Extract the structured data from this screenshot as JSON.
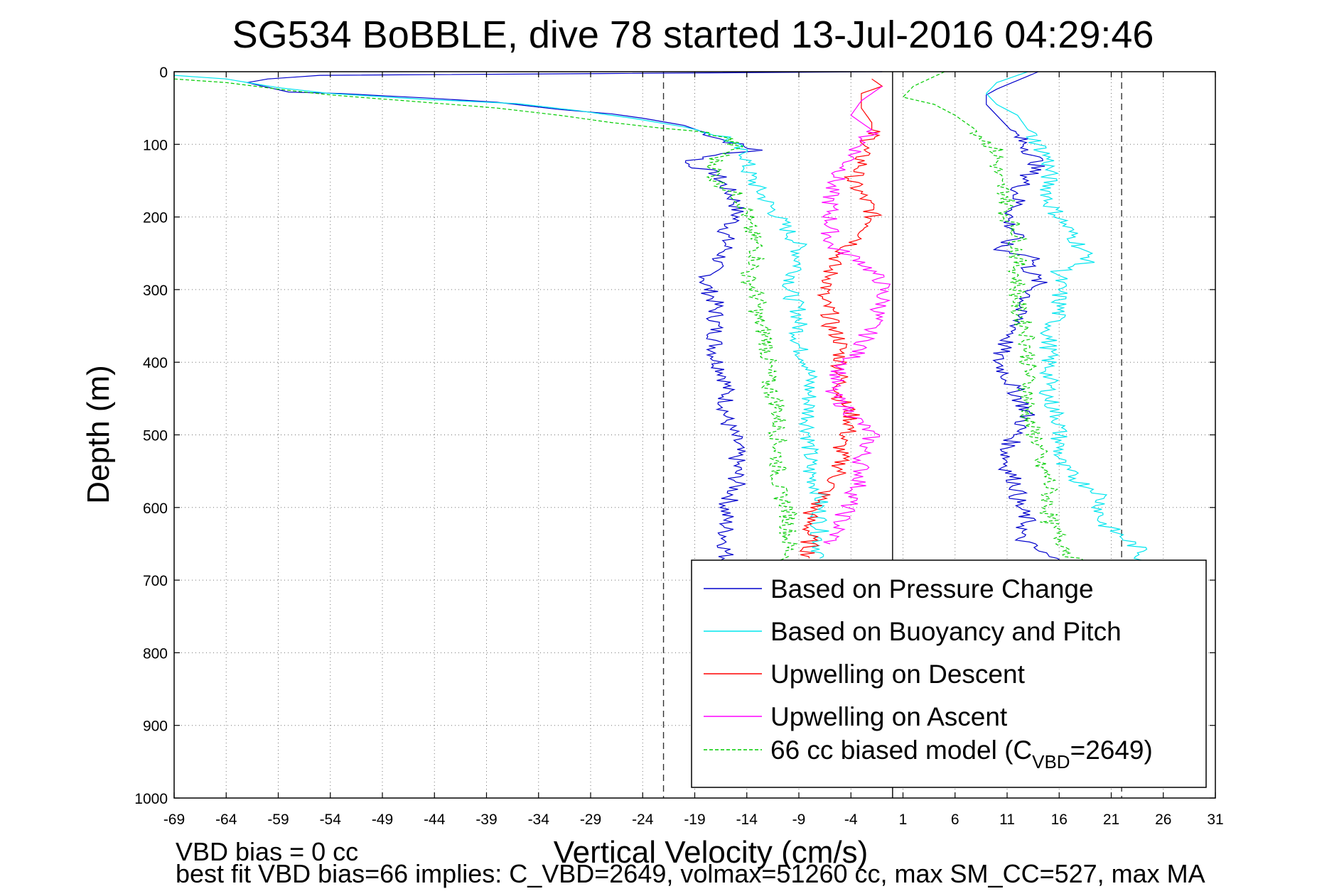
{
  "chart_data": {
    "type": "line",
    "title": "SG534 BoBBLE, dive 78 started 13-Jul-2016 04:29:46",
    "xlabel": "Vertical Velocity (cm/s)",
    "ylabel": "Depth (m)",
    "xlim": [
      -69,
      31
    ],
    "ylim": [
      0,
      1000
    ],
    "y_reversed": true,
    "grid": true,
    "x_ticks": [
      -69,
      -64,
      -59,
      -54,
      -49,
      -44,
      -39,
      -34,
      -29,
      -24,
      -19,
      -14,
      -9,
      -4,
      1,
      6,
      11,
      16,
      21,
      26,
      31
    ],
    "y_ticks": [
      0,
      100,
      200,
      300,
      400,
      500,
      600,
      700,
      800,
      900,
      1000
    ],
    "reference_lines": {
      "zero": 0,
      "dashed": [
        -22,
        22
      ]
    },
    "legend_placement": "bottom-right",
    "footer": {
      "line1": "VBD bias = 0 cc",
      "line2": "best fit VBD bias=66 implies: C_VBD=2649, volmax=51260 cc, max SM_CC=527, max MA"
    },
    "series": [
      {
        "name": "Based on Pressure Change",
        "color": "#0000cc",
        "style": "solid",
        "points": [
          [
            -1,
            0
          ],
          [
            -55,
            5
          ],
          [
            -60,
            10
          ],
          [
            -62,
            15
          ],
          [
            -58,
            28
          ],
          [
            -53,
            30
          ],
          [
            -45,
            36
          ],
          [
            -38,
            42
          ],
          [
            -32,
            52
          ],
          [
            -27,
            58
          ],
          [
            -24,
            64
          ],
          [
            -20,
            74
          ],
          [
            -18,
            84
          ],
          [
            -16,
            95
          ],
          [
            -14,
            104
          ],
          [
            -13,
            108
          ],
          [
            -17,
            115
          ],
          [
            -20,
            125
          ],
          [
            -17,
            140
          ],
          [
            -16,
            160
          ],
          [
            -15,
            180
          ],
          [
            -15,
            200
          ],
          [
            -16,
            220
          ],
          [
            -16,
            245
          ],
          [
            -17,
            265
          ],
          [
            -18,
            290
          ],
          [
            -17,
            320
          ],
          [
            -17,
            345
          ],
          [
            -17,
            370
          ],
          [
            -17,
            395
          ],
          [
            -16,
            420
          ],
          [
            -16,
            450
          ],
          [
            -16,
            480
          ],
          [
            -15,
            510
          ],
          [
            -15,
            540
          ],
          [
            -15,
            570
          ],
          [
            -16,
            600
          ],
          [
            -16,
            630
          ],
          [
            -16,
            660
          ],
          [
            -16,
            690
          ]
        ]
      },
      {
        "name": "Based on Buoyancy and Pitch",
        "color": "#00e5ee",
        "style": "solid",
        "points": [
          [
            -69,
            5
          ],
          [
            -64,
            10
          ],
          [
            -59,
            22
          ],
          [
            -54,
            30
          ],
          [
            -45,
            38
          ],
          [
            -36,
            44
          ],
          [
            -30,
            54
          ],
          [
            -25,
            64
          ],
          [
            -20,
            76
          ],
          [
            -16,
            90
          ],
          [
            -15,
            105
          ],
          [
            -14,
            115
          ],
          [
            -14,
            135
          ],
          [
            -13,
            160
          ],
          [
            -12,
            180
          ],
          [
            -11,
            200
          ],
          [
            -10,
            220
          ],
          [
            -9,
            240
          ],
          [
            -9,
            270
          ],
          [
            -10,
            300
          ],
          [
            -9,
            330
          ],
          [
            -9,
            355
          ],
          [
            -9,
            380
          ],
          [
            -8,
            405
          ],
          [
            -8,
            430
          ],
          [
            -8,
            460
          ],
          [
            -8,
            490
          ],
          [
            -8,
            520
          ],
          [
            -8,
            550
          ],
          [
            -7,
            580
          ],
          [
            -7,
            610
          ],
          [
            -7,
            640
          ],
          [
            -7,
            670
          ]
        ]
      },
      {
        "name": "Upwelling on Descent",
        "color": "#ff0000",
        "style": "solid",
        "points": [
          [
            -2,
            10
          ],
          [
            -1,
            20
          ],
          [
            -3,
            30
          ],
          [
            -3,
            50
          ],
          [
            -2,
            70
          ],
          [
            -2,
            90
          ],
          [
            -3,
            110
          ],
          [
            -3,
            130
          ],
          [
            -4,
            150
          ],
          [
            -3,
            170
          ],
          [
            -2,
            190
          ],
          [
            -2,
            210
          ],
          [
            -3,
            230
          ],
          [
            -5,
            250
          ],
          [
            -6,
            270
          ],
          [
            -6,
            290
          ],
          [
            -7,
            310
          ],
          [
            -6,
            330
          ],
          [
            -6,
            350
          ],
          [
            -5,
            370
          ],
          [
            -5,
            390
          ],
          [
            -5,
            410
          ],
          [
            -5,
            430
          ],
          [
            -5,
            450
          ],
          [
            -4,
            470
          ],
          [
            -4,
            490
          ],
          [
            -5,
            510
          ],
          [
            -5,
            530
          ],
          [
            -5,
            550
          ],
          [
            -6,
            570
          ],
          [
            -7,
            590
          ],
          [
            -8,
            610
          ],
          [
            -8,
            630
          ],
          [
            -8,
            650
          ],
          [
            -8,
            670
          ]
        ]
      },
      {
        "name": "Upwelling on Ascent",
        "color": "#ff00ff",
        "style": "solid",
        "points": [
          [
            -1,
            20
          ],
          [
            -3,
            40
          ],
          [
            -4,
            60
          ],
          [
            -2,
            80
          ],
          [
            -3,
            100
          ],
          [
            -4,
            120
          ],
          [
            -5,
            140
          ],
          [
            -6,
            160
          ],
          [
            -6,
            200
          ],
          [
            -6,
            240
          ],
          [
            -3,
            260
          ],
          [
            -1,
            290
          ],
          [
            -1,
            320
          ],
          [
            -2,
            350
          ],
          [
            -3,
            380
          ],
          [
            -5,
            410
          ],
          [
            -6,
            440
          ],
          [
            -4,
            470
          ],
          [
            -2,
            500
          ],
          [
            -3,
            530
          ],
          [
            -3,
            560
          ],
          [
            -4,
            590
          ],
          [
            -5,
            620
          ],
          [
            -6,
            650
          ]
        ]
      },
      {
        "name": "66 cc biased model (C",
        "name_sub": "VBD",
        "name_tail": "=2649)",
        "color": "#00cc00",
        "style": "dashed",
        "points": [
          [
            -69,
            10
          ],
          [
            -64,
            15
          ],
          [
            -59,
            24
          ],
          [
            -54,
            32
          ],
          [
            -45,
            42
          ],
          [
            -38,
            50
          ],
          [
            -32,
            60
          ],
          [
            -27,
            70
          ],
          [
            -22,
            78
          ],
          [
            -18,
            84
          ],
          [
            -16,
            90
          ],
          [
            -15,
            105
          ],
          [
            -17,
            120
          ],
          [
            -17,
            150
          ],
          [
            -15,
            170
          ],
          [
            -14,
            190
          ],
          [
            -14,
            210
          ],
          [
            -13,
            240
          ],
          [
            -13,
            260
          ],
          [
            -14,
            280
          ],
          [
            -13,
            310
          ],
          [
            -13,
            340
          ],
          [
            -12,
            370
          ],
          [
            -12,
            400
          ],
          [
            -12,
            430
          ],
          [
            -11,
            460
          ],
          [
            -11,
            490
          ],
          [
            -11,
            520
          ],
          [
            -11,
            550
          ],
          [
            -11,
            580
          ],
          [
            -10,
            600
          ],
          [
            -10,
            630
          ],
          [
            -10,
            660
          ],
          [
            -10,
            690
          ]
        ]
      },
      {
        "color": "#0000cc",
        "style": "solid",
        "points": [
          [
            14,
            0
          ],
          [
            12,
            12
          ],
          [
            10,
            24
          ],
          [
            9,
            32
          ],
          [
            9,
            45
          ],
          [
            10,
            60
          ],
          [
            11,
            75
          ],
          [
            12,
            90
          ],
          [
            13,
            105
          ],
          [
            14,
            125
          ],
          [
            13,
            145
          ],
          [
            12,
            165
          ],
          [
            12,
            185
          ],
          [
            11,
            205
          ],
          [
            12,
            225
          ],
          [
            10,
            245
          ],
          [
            14,
            255
          ],
          [
            13,
            270
          ],
          [
            14,
            290
          ],
          [
            13,
            310
          ],
          [
            12,
            330
          ],
          [
            12,
            350
          ],
          [
            11,
            370
          ],
          [
            10,
            395
          ],
          [
            11,
            420
          ],
          [
            12,
            445
          ],
          [
            13,
            470
          ],
          [
            12,
            495
          ],
          [
            11,
            520
          ],
          [
            11,
            545
          ],
          [
            12,
            570
          ],
          [
            12,
            595
          ],
          [
            13,
            620
          ],
          [
            12,
            640
          ],
          [
            14,
            660
          ],
          [
            16,
            675
          ],
          [
            17,
            690
          ]
        ]
      },
      {
        "color": "#00e5ee",
        "style": "solid",
        "points": [
          [
            13,
            0
          ],
          [
            10,
            15
          ],
          [
            9,
            30
          ],
          [
            10,
            45
          ],
          [
            12,
            60
          ],
          [
            13,
            80
          ],
          [
            14,
            100
          ],
          [
            15,
            120
          ],
          [
            15,
            140
          ],
          [
            15,
            160
          ],
          [
            15,
            180
          ],
          [
            16,
            200
          ],
          [
            17,
            220
          ],
          [
            18,
            240
          ],
          [
            19,
            260
          ],
          [
            16,
            275
          ],
          [
            16,
            300
          ],
          [
            16,
            330
          ],
          [
            15,
            360
          ],
          [
            15,
            390
          ],
          [
            15,
            420
          ],
          [
            15,
            450
          ],
          [
            16,
            480
          ],
          [
            16,
            510
          ],
          [
            16,
            540
          ],
          [
            18,
            565
          ],
          [
            20,
            580
          ],
          [
            20,
            600
          ],
          [
            20,
            620
          ],
          [
            22,
            640
          ],
          [
            24,
            660
          ],
          [
            24,
            690
          ]
        ]
      },
      {
        "color": "#00cc00",
        "style": "dashed",
        "points": [
          [
            5,
            0
          ],
          [
            2,
            20
          ],
          [
            1,
            35
          ],
          [
            4,
            45
          ],
          [
            6,
            60
          ],
          [
            8,
            80
          ],
          [
            9,
            95
          ],
          [
            10,
            110
          ],
          [
            10,
            130
          ],
          [
            10,
            150
          ],
          [
            11,
            170
          ],
          [
            11,
            200
          ],
          [
            12,
            220
          ],
          [
            12,
            250
          ],
          [
            12,
            270
          ],
          [
            12,
            300
          ],
          [
            12,
            330
          ],
          [
            13,
            360
          ],
          [
            13,
            390
          ],
          [
            13,
            420
          ],
          [
            13,
            450
          ],
          [
            13,
            480
          ],
          [
            14,
            510
          ],
          [
            14,
            540
          ],
          [
            15,
            560
          ],
          [
            15,
            590
          ],
          [
            15,
            620
          ],
          [
            16,
            640
          ],
          [
            17,
            660
          ],
          [
            18,
            690
          ]
        ]
      }
    ]
  }
}
